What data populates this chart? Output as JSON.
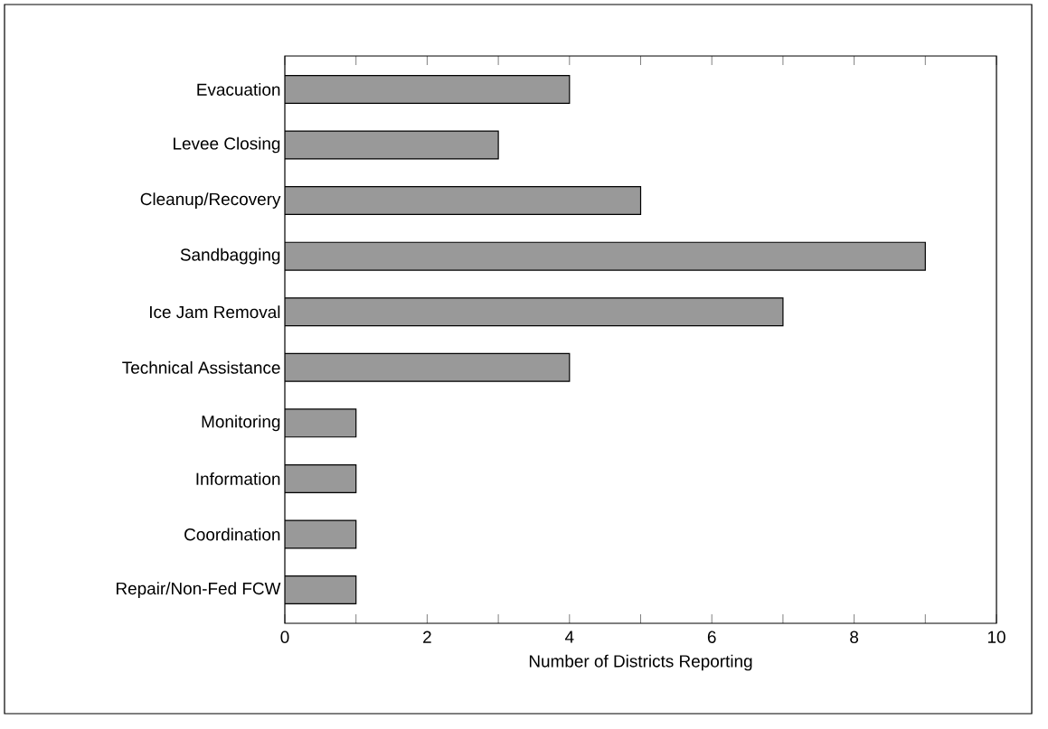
{
  "chart_data": {
    "type": "bar",
    "orientation": "horizontal",
    "categories": [
      "Evacuation",
      "Levee Closing",
      "Cleanup/Recovery",
      "Sandbagging",
      "Ice Jam Removal",
      "Technical Assistance",
      "Monitoring",
      "Information",
      "Coordination",
      "Repair/Non-Fed FCW"
    ],
    "values": [
      4,
      3,
      5,
      9,
      7,
      4,
      1,
      1,
      1,
      1
    ],
    "color": "#999999",
    "xlim": [
      0,
      10
    ],
    "xticks": [
      0,
      {
        "value": 1,
        "label": null
      },
      2,
      {
        "value": 3,
        "label": null
      },
      4,
      {
        "value": 5,
        "label": null
      },
      6,
      {
        "value": 7,
        "label": null
      },
      8,
      {
        "value": 9,
        "label": null
      },
      10
    ],
    "xlabel": "Number of Districts Reporting"
  }
}
